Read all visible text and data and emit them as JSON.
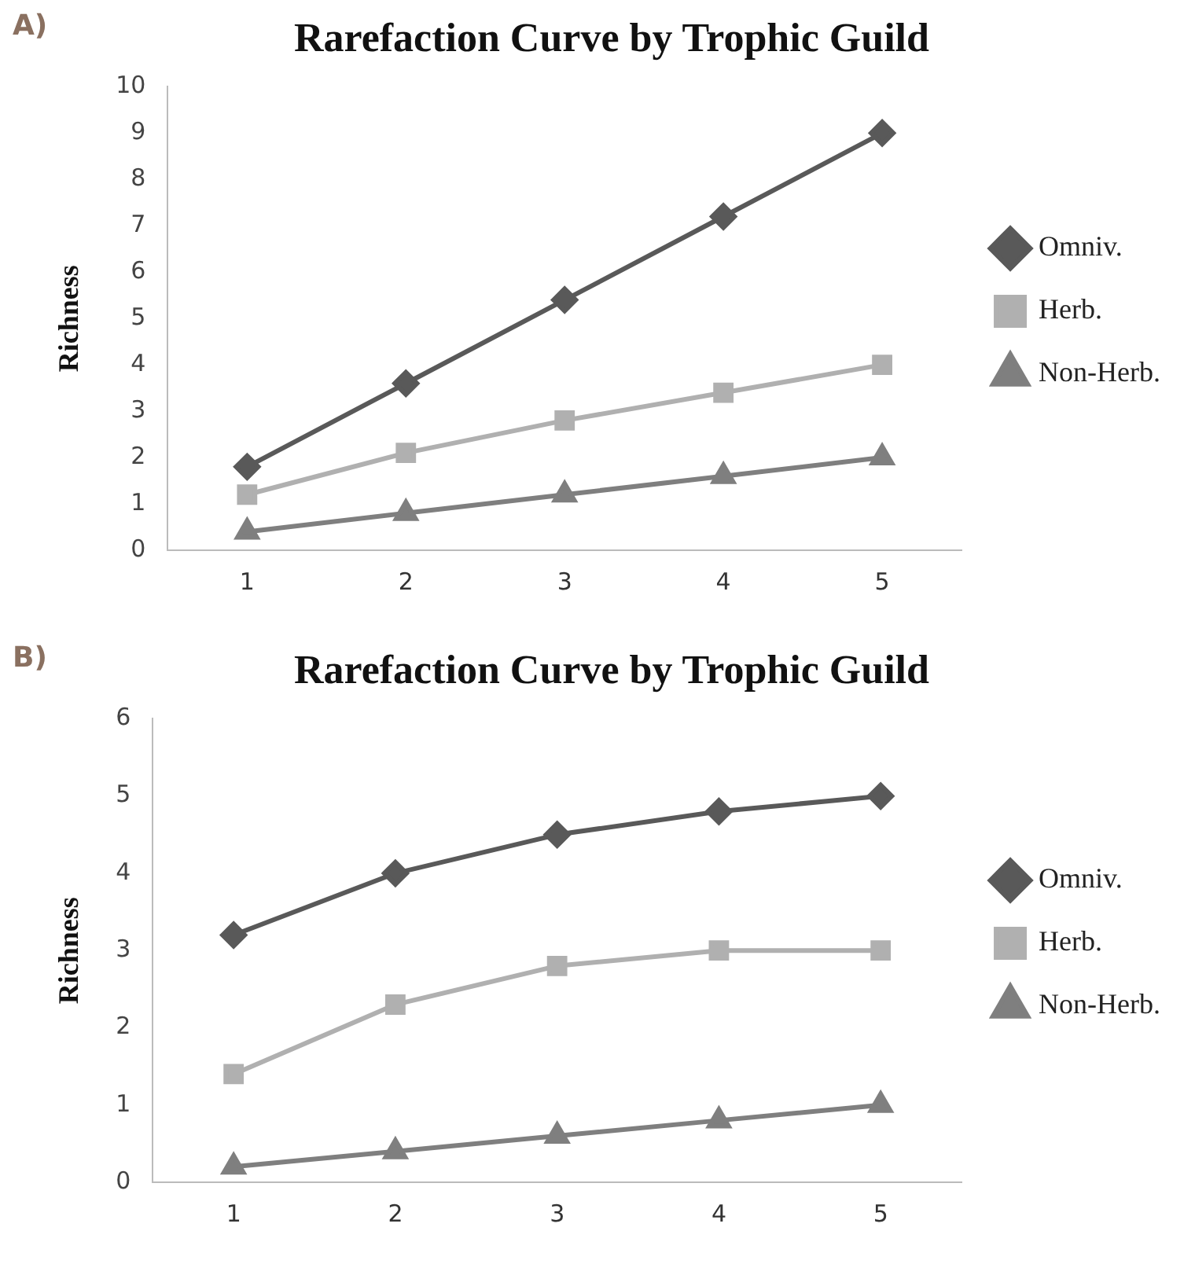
{
  "chart_data": [
    {
      "type": "line",
      "title": "Rarefaction Curve by Trophic Guild",
      "ylabel": "Richness",
      "annotations": [
        "A)"
      ],
      "categories": [
        "1",
        "2",
        "3",
        "4",
        "5"
      ],
      "series": [
        {
          "name": "Omniv.",
          "color": "#595959",
          "marker": "diamond",
          "values": [
            1.8,
            3.6,
            5.4,
            7.2,
            9.0
          ]
        },
        {
          "name": "Herb.",
          "color": "#b0b0b0",
          "marker": "square",
          "values": [
            1.2,
            2.1,
            2.8,
            3.4,
            4.0
          ]
        },
        {
          "name": "Non-Herb.",
          "color": "#7f7f7f",
          "marker": "triangle",
          "values": [
            0.4,
            0.8,
            1.2,
            1.6,
            2.0
          ]
        }
      ],
      "ylim": [
        0,
        10
      ],
      "yticks": [
        0,
        1,
        2,
        3,
        4,
        5,
        6,
        7,
        8,
        9,
        10
      ],
      "grid": false,
      "legend": "right",
      "line_style": "solid"
    },
    {
      "type": "line",
      "title": "Rarefaction Curve by Trophic Guild",
      "ylabel": "Richness",
      "annotations": [
        "B)"
      ],
      "categories": [
        "1",
        "2",
        "3",
        "4",
        "5"
      ],
      "series": [
        {
          "name": "Omniv.",
          "color": "#595959",
          "marker": "diamond",
          "values": [
            3.2,
            4.0,
            4.5,
            4.8,
            5.0
          ]
        },
        {
          "name": "Herb.",
          "color": "#b0b0b0",
          "marker": "square",
          "values": [
            1.4,
            2.3,
            2.8,
            3.0,
            3.0
          ]
        },
        {
          "name": "Non-Herb.",
          "color": "#7f7f7f",
          "marker": "triangle",
          "values": [
            0.2,
            0.4,
            0.6,
            0.8,
            1.0
          ]
        }
      ],
      "ylim": [
        0,
        6
      ],
      "yticks": [
        0,
        1,
        2,
        3,
        4,
        5,
        6
      ],
      "grid": false,
      "legend": "right",
      "line_style": "solid"
    }
  ]
}
